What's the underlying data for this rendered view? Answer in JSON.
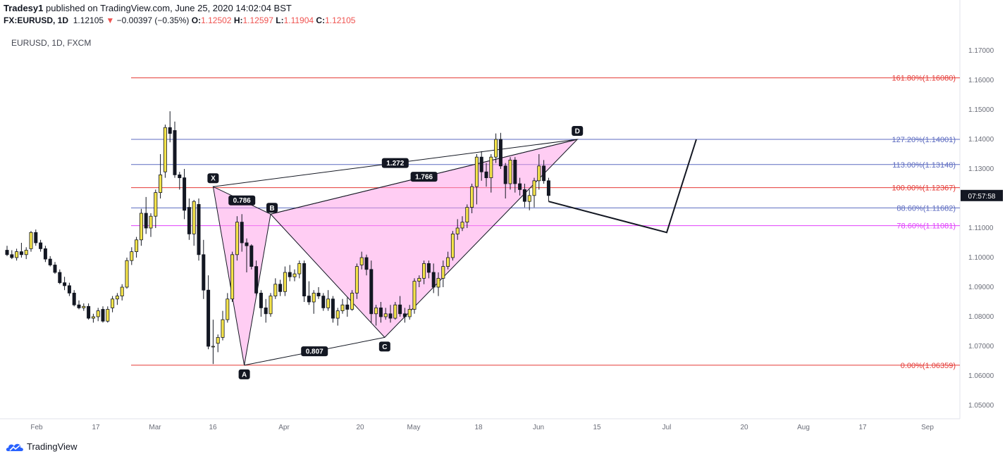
{
  "header": {
    "publisher": "Tradesy1",
    "published_text": "published on TradingView.com, June 25, 2020 14:02:04 BST",
    "symbol_line": "FX:EURUSD, 1D",
    "last": "1.12105",
    "change": "−0.00397 (−0.35%)",
    "o_label": "O:",
    "o_value": "1.12502",
    "h_label": "H:",
    "h_value": "1.12597",
    "l_label": "L:",
    "l_value": "1.11904",
    "c_label": "C:",
    "c_value": "1.12105"
  },
  "symbol_label": "EURUSD, 1D, FXCM",
  "footer": {
    "brand": "TradingView"
  },
  "colors": {
    "up": "#f5e44a",
    "down": "#131722",
    "pattern_fill": "#ff9be8",
    "fib_red": "#e53935",
    "fib_blue": "#5c6bc0",
    "fib_magenta": "#e040fb",
    "price_tag": "#131722"
  },
  "chart_data": {
    "type": "candlestick",
    "pattern": "harmonic XABCD",
    "ylim": [
      1.045,
      1.175
    ],
    "yticks": [
      "1.17000",
      "1.16000",
      "1.15000",
      "1.14000",
      "1.13000",
      "1.12000",
      "1.11000",
      "1.10000",
      "1.09000",
      "1.08000",
      "1.07000",
      "1.06000",
      "1.05000"
    ],
    "xticks": [
      "Feb",
      "17",
      "Mar",
      "16",
      "Apr",
      "20",
      "May",
      "18",
      "Jun",
      "15",
      "Jul",
      "20",
      "Aug",
      "17",
      "Sep"
    ],
    "price_tag": "07:57:58",
    "candles": [
      {
        "o": 1.1025,
        "h": 1.104,
        "l": 1.1005,
        "c": 1.101
      },
      {
        "o": 1.101,
        "h": 1.1025,
        "l": 1.0995,
        "c": 1.1
      },
      {
        "o": 1.1,
        "h": 1.103,
        "l": 1.099,
        "c": 1.102
      },
      {
        "o": 1.102,
        "h": 1.105,
        "l": 1.1,
        "c": 1.101
      },
      {
        "o": 1.101,
        "h": 1.1035,
        "l": 1.0995,
        "c": 1.1025
      },
      {
        "o": 1.103,
        "h": 1.109,
        "l": 1.102,
        "c": 1.1085
      },
      {
        "o": 1.1085,
        "h": 1.1095,
        "l": 1.104,
        "c": 1.105
      },
      {
        "o": 1.105,
        "h": 1.106,
        "l": 1.102,
        "c": 1.103
      },
      {
        "o": 1.103,
        "h": 1.104,
        "l": 1.0985,
        "c": 1.0995
      },
      {
        "o": 1.0995,
        "h": 1.1005,
        "l": 1.097,
        "c": 1.0975
      },
      {
        "o": 1.0975,
        "h": 1.0985,
        "l": 1.0945,
        "c": 1.095
      },
      {
        "o": 1.095,
        "h": 1.096,
        "l": 1.091,
        "c": 1.0915
      },
      {
        "o": 1.0915,
        "h": 1.0935,
        "l": 1.089,
        "c": 1.0905
      },
      {
        "o": 1.0905,
        "h": 1.0915,
        "l": 1.087,
        "c": 1.088
      },
      {
        "o": 1.088,
        "h": 1.089,
        "l": 1.0835,
        "c": 1.084
      },
      {
        "o": 1.084,
        "h": 1.0855,
        "l": 1.0825,
        "c": 1.083
      },
      {
        "o": 1.083,
        "h": 1.0845,
        "l": 1.082,
        "c": 1.0835
      },
      {
        "o": 1.0835,
        "h": 1.0845,
        "l": 1.079,
        "c": 1.0795
      },
      {
        "o": 1.0795,
        "h": 1.081,
        "l": 1.078,
        "c": 1.08
      },
      {
        "o": 1.08,
        "h": 1.083,
        "l": 1.0785,
        "c": 1.082
      },
      {
        "o": 1.0825,
        "h": 1.0835,
        "l": 1.078,
        "c": 1.0785
      },
      {
        "o": 1.0785,
        "h": 1.0835,
        "l": 1.078,
        "c": 1.0825
      },
      {
        "o": 1.083,
        "h": 1.087,
        "l": 1.0815,
        "c": 1.086
      },
      {
        "o": 1.086,
        "h": 1.088,
        "l": 1.084,
        "c": 1.087
      },
      {
        "o": 1.087,
        "h": 1.091,
        "l": 1.0855,
        "c": 1.09
      },
      {
        "o": 1.09,
        "h": 1.1,
        "l": 1.0895,
        "c": 1.099
      },
      {
        "o": 1.099,
        "h": 1.1035,
        "l": 1.0975,
        "c": 1.102
      },
      {
        "o": 1.102,
        "h": 1.107,
        "l": 1.1,
        "c": 1.106
      },
      {
        "o": 1.106,
        "h": 1.1165,
        "l": 1.104,
        "c": 1.115
      },
      {
        "o": 1.115,
        "h": 1.1205,
        "l": 1.108,
        "c": 1.11
      },
      {
        "o": 1.11,
        "h": 1.115,
        "l": 1.107,
        "c": 1.114
      },
      {
        "o": 1.114,
        "h": 1.123,
        "l": 1.11,
        "c": 1.122
      },
      {
        "o": 1.122,
        "h": 1.135,
        "l": 1.12,
        "c": 1.128
      },
      {
        "o": 1.129,
        "h": 1.145,
        "l": 1.127,
        "c": 1.144
      },
      {
        "o": 1.144,
        "h": 1.1495,
        "l": 1.139,
        "c": 1.142
      },
      {
        "o": 1.143,
        "h": 1.146,
        "l": 1.127,
        "c": 1.128
      },
      {
        "o": 1.128,
        "h": 1.129,
        "l": 1.123,
        "c": 1.127
      },
      {
        "o": 1.127,
        "h": 1.13,
        "l": 1.113,
        "c": 1.116
      },
      {
        "o": 1.117,
        "h": 1.12,
        "l": 1.106,
        "c": 1.108
      },
      {
        "o": 1.108,
        "h": 1.1195,
        "l": 1.104,
        "c": 1.119
      },
      {
        "o": 1.118,
        "h": 1.12,
        "l": 1.099,
        "c": 1.101
      },
      {
        "o": 1.101,
        "h": 1.106,
        "l": 1.086,
        "c": 1.089
      },
      {
        "o": 1.089,
        "h": 1.094,
        "l": 1.069,
        "c": 1.07
      },
      {
        "o": 1.07,
        "h": 1.079,
        "l": 1.064,
        "c": 1.07
      },
      {
        "o": 1.071,
        "h": 1.074,
        "l": 1.068,
        "c": 1.073
      },
      {
        "o": 1.073,
        "h": 1.082,
        "l": 1.072,
        "c": 1.079
      },
      {
        "o": 1.079,
        "h": 1.088,
        "l": 1.078,
        "c": 1.086
      },
      {
        "o": 1.086,
        "h": 1.102,
        "l": 1.085,
        "c": 1.101
      },
      {
        "o": 1.101,
        "h": 1.114,
        "l": 1.099,
        "c": 1.112
      },
      {
        "o": 1.112,
        "h": 1.1147,
        "l": 1.102,
        "c": 1.105
      },
      {
        "o": 1.105,
        "h": 1.1065,
        "l": 1.095,
        "c": 1.104
      },
      {
        "o": 1.104,
        "h": 1.1045,
        "l": 1.096,
        "c": 1.097
      },
      {
        "o": 1.097,
        "h": 1.099,
        "l": 1.087,
        "c": 1.088
      },
      {
        "o": 1.088,
        "h": 1.089,
        "l": 1.08,
        "c": 1.083
      },
      {
        "o": 1.083,
        "h": 1.086,
        "l": 1.078,
        "c": 1.081
      },
      {
        "o": 1.081,
        "h": 1.088,
        "l": 1.08,
        "c": 1.087
      },
      {
        "o": 1.087,
        "h": 1.093,
        "l": 1.086,
        "c": 1.091
      },
      {
        "o": 1.091,
        "h": 1.0925,
        "l": 1.087,
        "c": 1.0885
      },
      {
        "o": 1.0885,
        "h": 1.097,
        "l": 1.087,
        "c": 1.095
      },
      {
        "o": 1.095,
        "h": 1.0975,
        "l": 1.092,
        "c": 1.0935
      },
      {
        "o": 1.0935,
        "h": 1.096,
        "l": 1.092,
        "c": 1.0945
      },
      {
        "o": 1.0945,
        "h": 1.099,
        "l": 1.093,
        "c": 1.098
      },
      {
        "o": 1.098,
        "h": 1.099,
        "l": 1.085,
        "c": 1.087
      },
      {
        "o": 1.087,
        "h": 1.092,
        "l": 1.084,
        "c": 1.085
      },
      {
        "o": 1.085,
        "h": 1.089,
        "l": 1.081,
        "c": 1.088
      },
      {
        "o": 1.088,
        "h": 1.09,
        "l": 1.086,
        "c": 1.087
      },
      {
        "o": 1.087,
        "h": 1.088,
        "l": 1.082,
        "c": 1.083
      },
      {
        "o": 1.083,
        "h": 1.089,
        "l": 1.082,
        "c": 1.086
      },
      {
        "o": 1.086,
        "h": 1.087,
        "l": 1.078,
        "c": 1.0795
      },
      {
        "o": 1.0795,
        "h": 1.083,
        "l": 1.077,
        "c": 1.082
      },
      {
        "o": 1.082,
        "h": 1.086,
        "l": 1.081,
        "c": 1.084
      },
      {
        "o": 1.084,
        "h": 1.0865,
        "l": 1.08,
        "c": 1.0825
      },
      {
        "o": 1.0825,
        "h": 1.089,
        "l": 1.082,
        "c": 1.088
      },
      {
        "o": 1.088,
        "h": 1.098,
        "l": 1.086,
        "c": 1.097
      },
      {
        "o": 1.0975,
        "h": 1.102,
        "l": 1.096,
        "c": 1.1
      },
      {
        "o": 1.1,
        "h": 1.101,
        "l": 1.094,
        "c": 1.096
      },
      {
        "o": 1.096,
        "h": 1.099,
        "l": 1.078,
        "c": 1.081
      },
      {
        "o": 1.081,
        "h": 1.084,
        "l": 1.077,
        "c": 1.083
      },
      {
        "o": 1.083,
        "h": 1.085,
        "l": 1.078,
        "c": 1.08
      },
      {
        "o": 1.08,
        "h": 1.083,
        "l": 1.079,
        "c": 1.081
      },
      {
        "o": 1.081,
        "h": 1.084,
        "l": 1.078,
        "c": 1.0795
      },
      {
        "o": 1.0795,
        "h": 1.085,
        "l": 1.079,
        "c": 1.084
      },
      {
        "o": 1.084,
        "h": 1.087,
        "l": 1.08,
        "c": 1.081
      },
      {
        "o": 1.081,
        "h": 1.083,
        "l": 1.078,
        "c": 1.08
      },
      {
        "o": 1.08,
        "h": 1.084,
        "l": 1.079,
        "c": 1.0825
      },
      {
        "o": 1.0825,
        "h": 1.093,
        "l": 1.081,
        "c": 1.092
      },
      {
        "o": 1.092,
        "h": 1.094,
        "l": 1.09,
        "c": 1.093
      },
      {
        "o": 1.093,
        "h": 1.099,
        "l": 1.091,
        "c": 1.098
      },
      {
        "o": 1.098,
        "h": 1.099,
        "l": 1.093,
        "c": 1.095
      },
      {
        "o": 1.095,
        "h": 1.098,
        "l": 1.088,
        "c": 1.09
      },
      {
        "o": 1.09,
        "h": 1.095,
        "l": 1.087,
        "c": 1.093
      },
      {
        "o": 1.093,
        "h": 1.099,
        "l": 1.09,
        "c": 1.097
      },
      {
        "o": 1.097,
        "h": 1.102,
        "l": 1.096,
        "c": 1.1
      },
      {
        "o": 1.1,
        "h": 1.109,
        "l": 1.099,
        "c": 1.108
      },
      {
        "o": 1.108,
        "h": 1.113,
        "l": 1.106,
        "c": 1.11
      },
      {
        "o": 1.11,
        "h": 1.114,
        "l": 1.109,
        "c": 1.112
      },
      {
        "o": 1.112,
        "h": 1.118,
        "l": 1.11,
        "c": 1.117
      },
      {
        "o": 1.117,
        "h": 1.125,
        "l": 1.115,
        "c": 1.124
      },
      {
        "o": 1.124,
        "h": 1.135,
        "l": 1.118,
        "c": 1.134
      },
      {
        "o": 1.134,
        "h": 1.136,
        "l": 1.126,
        "c": 1.129
      },
      {
        "o": 1.129,
        "h": 1.132,
        "l": 1.124,
        "c": 1.127
      },
      {
        "o": 1.127,
        "h": 1.135,
        "l": 1.122,
        "c": 1.134
      },
      {
        "o": 1.134,
        "h": 1.142,
        "l": 1.132,
        "c": 1.14
      },
      {
        "o": 1.14,
        "h": 1.1422,
        "l": 1.13,
        "c": 1.131
      },
      {
        "o": 1.131,
        "h": 1.132,
        "l": 1.12,
        "c": 1.125
      },
      {
        "o": 1.125,
        "h": 1.134,
        "l": 1.123,
        "c": 1.133
      },
      {
        "o": 1.133,
        "h": 1.134,
        "l": 1.122,
        "c": 1.125
      },
      {
        "o": 1.125,
        "h": 1.127,
        "l": 1.121,
        "c": 1.123
      },
      {
        "o": 1.123,
        "h": 1.125,
        "l": 1.117,
        "c": 1.119
      },
      {
        "o": 1.119,
        "h": 1.123,
        "l": 1.116,
        "c": 1.121
      },
      {
        "o": 1.121,
        "h": 1.127,
        "l": 1.117,
        "c": 1.126
      },
      {
        "o": 1.126,
        "h": 1.135,
        "l": 1.123,
        "c": 1.131
      },
      {
        "o": 1.131,
        "h": 1.133,
        "l": 1.125,
        "c": 1.126
      },
      {
        "o": 1.126,
        "h": 1.127,
        "l": 1.119,
        "c": 1.121
      }
    ],
    "pattern_points": [
      {
        "label": "X",
        "price": 1.124
      },
      {
        "label": "A",
        "price": 1.0636
      },
      {
        "label": "B",
        "price": 1.1147
      },
      {
        "label": "C",
        "price": 1.073
      },
      {
        "label": "D",
        "price": 1.14
      }
    ],
    "ratios": [
      "0.786",
      "1.272",
      "1.766",
      "0.807"
    ],
    "fib_levels": [
      {
        "label": "161.80%(1.16080)",
        "price": 1.1608,
        "color": "#e53935"
      },
      {
        "label": "127.20%(1.14001)",
        "price": 1.14001,
        "color": "#5c6bc0"
      },
      {
        "label": "113.00%(1.13148)",
        "price": 1.13148,
        "color": "#5c6bc0"
      },
      {
        "label": "100.00%(1.12367)",
        "price": 1.12367,
        "color": "#e53935"
      },
      {
        "label": "88.60%(1.11682)",
        "price": 1.11682,
        "color": "#5c6bc0"
      },
      {
        "label": "78.60%(1.11081)",
        "price": 1.11081,
        "color": "#e040fb"
      },
      {
        "label": "0.00%(1.06359)",
        "price": 1.06359,
        "color": "#e53935"
      }
    ],
    "projection": [
      {
        "price": 1.119
      },
      {
        "price": 1.1085
      },
      {
        "price": 1.14
      }
    ]
  }
}
